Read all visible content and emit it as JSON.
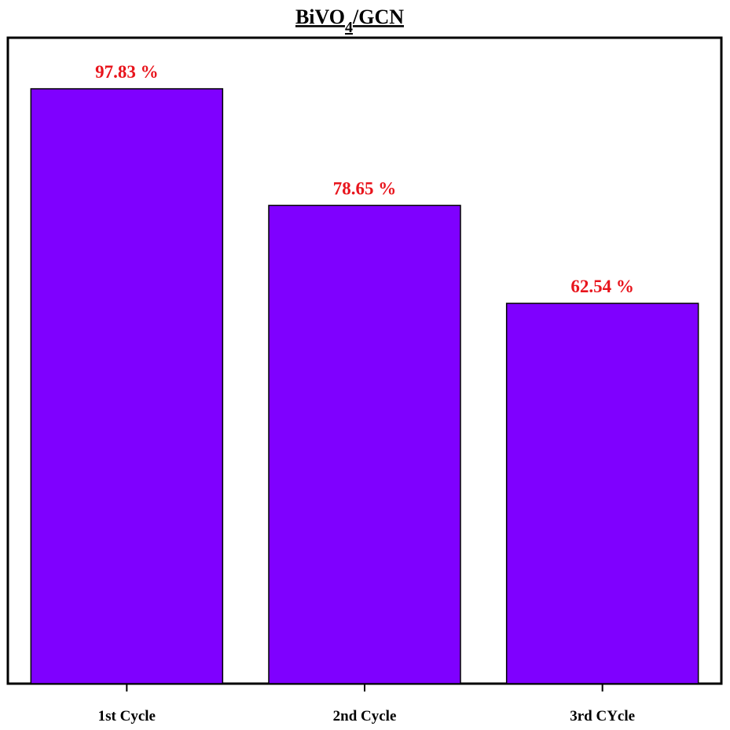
{
  "chart_data": {
    "type": "bar",
    "title": "BiVO4/GCN",
    "categories": [
      "1st Cycle",
      "2nd Cycle",
      "3rd CYcle"
    ],
    "values": [
      97.83,
      78.65,
      62.54
    ],
    "value_labels": [
      "97.83 %",
      "78.65 %",
      "62.54 %"
    ],
    "color": "#7f00ff"
  }
}
